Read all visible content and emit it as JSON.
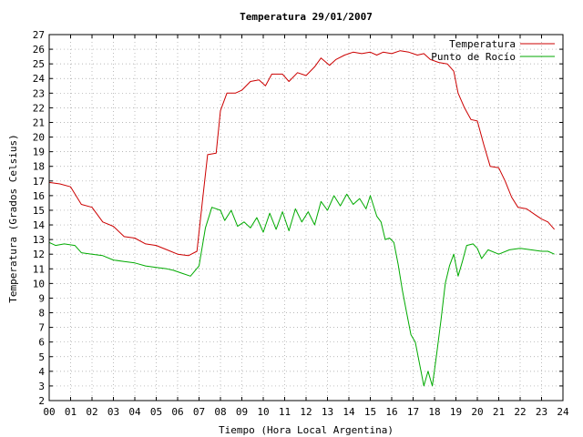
{
  "chart_data": {
    "type": "line",
    "title": "Temperatura 29/01/2007",
    "xlabel": "Tiempo (Hora Local Argentina)",
    "ylabel": "Temperatura (Grados Celsius)",
    "xlim": [
      0,
      24
    ],
    "ylim": [
      2,
      27
    ],
    "x_ticks": [
      "00",
      "01",
      "02",
      "03",
      "04",
      "05",
      "06",
      "07",
      "08",
      "09",
      "10",
      "11",
      "12",
      "13",
      "14",
      "15",
      "16",
      "17",
      "18",
      "19",
      "20",
      "21",
      "22",
      "23",
      "24"
    ],
    "y_ticks": [
      2,
      3,
      4,
      5,
      6,
      7,
      8,
      9,
      10,
      11,
      12,
      13,
      14,
      15,
      16,
      17,
      18,
      19,
      20,
      21,
      22,
      23,
      24,
      25,
      26,
      27
    ],
    "grid": true,
    "legend_position": "top-right",
    "series": [
      {
        "name": "Temperatura",
        "color": "#cc0000",
        "points": [
          [
            0,
            16.9
          ],
          [
            0.5,
            16.8
          ],
          [
            1.0,
            16.6
          ],
          [
            1.5,
            15.4
          ],
          [
            2.0,
            15.2
          ],
          [
            2.5,
            14.2
          ],
          [
            3.0,
            13.9
          ],
          [
            3.5,
            13.2
          ],
          [
            4.0,
            13.1
          ],
          [
            4.5,
            12.7
          ],
          [
            5.0,
            12.6
          ],
          [
            5.5,
            12.3
          ],
          [
            6.0,
            12.0
          ],
          [
            6.5,
            11.9
          ],
          [
            6.9,
            12.2
          ],
          [
            7.15,
            15.5
          ],
          [
            7.4,
            18.8
          ],
          [
            7.8,
            18.9
          ],
          [
            8.0,
            21.8
          ],
          [
            8.3,
            23.0
          ],
          [
            8.7,
            23.0
          ],
          [
            9.0,
            23.2
          ],
          [
            9.4,
            23.8
          ],
          [
            9.8,
            23.9
          ],
          [
            10.1,
            23.5
          ],
          [
            10.4,
            24.3
          ],
          [
            10.9,
            24.3
          ],
          [
            11.2,
            23.8
          ],
          [
            11.6,
            24.4
          ],
          [
            12.0,
            24.2
          ],
          [
            12.4,
            24.8
          ],
          [
            12.7,
            25.4
          ],
          [
            13.1,
            24.9
          ],
          [
            13.4,
            25.3
          ],
          [
            13.8,
            25.6
          ],
          [
            14.2,
            25.8
          ],
          [
            14.6,
            25.7
          ],
          [
            15.0,
            25.8
          ],
          [
            15.3,
            25.6
          ],
          [
            15.6,
            25.8
          ],
          [
            16.0,
            25.7
          ],
          [
            16.4,
            25.9
          ],
          [
            16.8,
            25.8
          ],
          [
            17.2,
            25.6
          ],
          [
            17.5,
            25.7
          ],
          [
            17.8,
            25.3
          ],
          [
            18.2,
            25.1
          ],
          [
            18.6,
            25.0
          ],
          [
            18.9,
            24.5
          ],
          [
            19.1,
            23.0
          ],
          [
            19.4,
            22.0
          ],
          [
            19.7,
            21.2
          ],
          [
            20.0,
            21.1
          ],
          [
            20.3,
            19.5
          ],
          [
            20.6,
            18.0
          ],
          [
            21.0,
            17.9
          ],
          [
            21.3,
            17.0
          ],
          [
            21.6,
            15.9
          ],
          [
            21.9,
            15.2
          ],
          [
            22.3,
            15.1
          ],
          [
            22.7,
            14.7
          ],
          [
            23.0,
            14.4
          ],
          [
            23.3,
            14.2
          ],
          [
            23.6,
            13.7
          ]
        ]
      },
      {
        "name": "Punto de Rocío",
        "color": "#00aa00",
        "points": [
          [
            0,
            12.8
          ],
          [
            0.3,
            12.6
          ],
          [
            0.7,
            12.7
          ],
          [
            1.2,
            12.6
          ],
          [
            1.5,
            12.1
          ],
          [
            2.0,
            12.0
          ],
          [
            2.5,
            11.9
          ],
          [
            3.0,
            11.6
          ],
          [
            3.5,
            11.5
          ],
          [
            4.0,
            11.4
          ],
          [
            4.5,
            11.2
          ],
          [
            5.0,
            11.1
          ],
          [
            5.5,
            11.0
          ],
          [
            5.8,
            10.9
          ],
          [
            6.2,
            10.7
          ],
          [
            6.6,
            10.5
          ],
          [
            7.0,
            11.2
          ],
          [
            7.3,
            13.8
          ],
          [
            7.6,
            15.2
          ],
          [
            8.0,
            15.0
          ],
          [
            8.2,
            14.3
          ],
          [
            8.5,
            15.0
          ],
          [
            8.8,
            13.9
          ],
          [
            9.1,
            14.2
          ],
          [
            9.4,
            13.8
          ],
          [
            9.7,
            14.5
          ],
          [
            10.0,
            13.5
          ],
          [
            10.3,
            14.8
          ],
          [
            10.6,
            13.7
          ],
          [
            10.9,
            14.9
          ],
          [
            11.2,
            13.6
          ],
          [
            11.5,
            15.1
          ],
          [
            11.8,
            14.2
          ],
          [
            12.1,
            14.9
          ],
          [
            12.4,
            14.0
          ],
          [
            12.7,
            15.6
          ],
          [
            13.0,
            15.0
          ],
          [
            13.3,
            16.0
          ],
          [
            13.6,
            15.3
          ],
          [
            13.9,
            16.1
          ],
          [
            14.2,
            15.4
          ],
          [
            14.5,
            15.8
          ],
          [
            14.8,
            15.1
          ],
          [
            15.0,
            16.0
          ],
          [
            15.3,
            14.6
          ],
          [
            15.5,
            14.2
          ],
          [
            15.7,
            13.0
          ],
          [
            15.9,
            13.1
          ],
          [
            16.1,
            12.8
          ],
          [
            16.3,
            11.3
          ],
          [
            16.5,
            9.5
          ],
          [
            16.7,
            8.0
          ],
          [
            16.9,
            6.5
          ],
          [
            17.1,
            6.0
          ],
          [
            17.3,
            4.5
          ],
          [
            17.5,
            3.0
          ],
          [
            17.7,
            4.0
          ],
          [
            17.9,
            3.0
          ],
          [
            18.1,
            5.2
          ],
          [
            18.3,
            7.5
          ],
          [
            18.5,
            10.0
          ],
          [
            18.7,
            11.2
          ],
          [
            18.9,
            12.0
          ],
          [
            19.1,
            10.5
          ],
          [
            19.3,
            11.5
          ],
          [
            19.5,
            12.6
          ],
          [
            19.8,
            12.7
          ],
          [
            20.0,
            12.4
          ],
          [
            20.2,
            11.7
          ],
          [
            20.5,
            12.3
          ],
          [
            21.0,
            12.0
          ],
          [
            21.5,
            12.3
          ],
          [
            22.0,
            12.4
          ],
          [
            22.5,
            12.3
          ],
          [
            23.0,
            12.2
          ],
          [
            23.3,
            12.2
          ],
          [
            23.6,
            12.0
          ]
        ]
      }
    ]
  }
}
